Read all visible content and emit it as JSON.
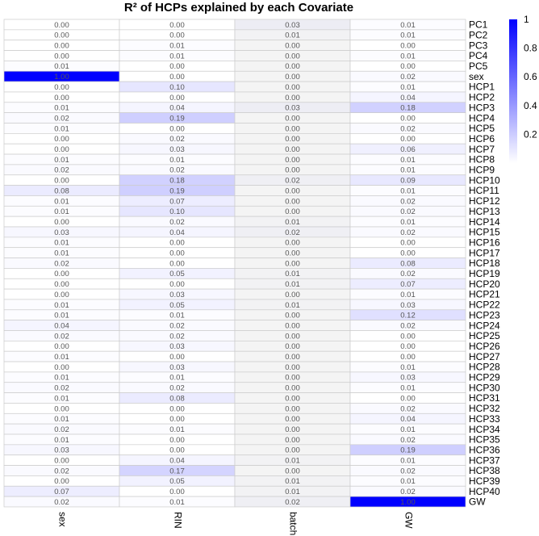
{
  "chart_data": {
    "type": "heatmap",
    "title": "R² of HCPs explained by each Covariate",
    "columns": [
      "sex",
      "RIN",
      "batch",
      "GW"
    ],
    "rows": [
      "PC1",
      "PC2",
      "PC3",
      "PC4",
      "PC5",
      "sex",
      "HCP1",
      "HCP2",
      "HCP3",
      "HCP4",
      "HCP5",
      "HCP6",
      "HCP7",
      "HCP8",
      "HCP9",
      "HCP10",
      "HCP11",
      "HCP12",
      "HCP13",
      "HCP14",
      "HCP15",
      "HCP16",
      "HCP17",
      "HCP18",
      "HCP19",
      "HCP20",
      "HCP21",
      "HCP22",
      "HCP23",
      "HCP24",
      "HCP25",
      "HCP26",
      "HCP27",
      "HCP28",
      "HCP29",
      "HCP30",
      "HCP31",
      "HCP32",
      "HCP33",
      "HCP34",
      "HCP35",
      "HCP36",
      "HCP37",
      "HCP38",
      "HCP39",
      "HCP40",
      "GW"
    ],
    "values": [
      [
        "0.00",
        "0.00",
        "0.03",
        "0.01"
      ],
      [
        "0.00",
        "0.00",
        "0.01",
        "0.01"
      ],
      [
        "0.00",
        "0.01",
        "0.00",
        "0.00"
      ],
      [
        "0.00",
        "0.01",
        "0.00",
        "0.01"
      ],
      [
        "0.01",
        "0.00",
        "0.00",
        "0.00"
      ],
      [
        "1.00",
        "0.00",
        "0.00",
        "0.02"
      ],
      [
        "0.00",
        "0.10",
        "0.00",
        "0.01"
      ],
      [
        "0.00",
        "0.00",
        "0.00",
        "0.04"
      ],
      [
        "0.01",
        "0.04",
        "0.03",
        "0.18"
      ],
      [
        "0.02",
        "0.19",
        "0.00",
        "0.00"
      ],
      [
        "0.01",
        "0.00",
        "0.00",
        "0.02"
      ],
      [
        "0.00",
        "0.02",
        "0.00",
        "0.00"
      ],
      [
        "0.00",
        "0.03",
        "0.00",
        "0.06"
      ],
      [
        "0.01",
        "0.01",
        "0.00",
        "0.01"
      ],
      [
        "0.02",
        "0.02",
        "0.00",
        "0.01"
      ],
      [
        "0.00",
        "0.18",
        "0.02",
        "0.09"
      ],
      [
        "0.08",
        "0.19",
        "0.00",
        "0.01"
      ],
      [
        "0.01",
        "0.07",
        "0.00",
        "0.02"
      ],
      [
        "0.01",
        "0.10",
        "0.00",
        "0.02"
      ],
      [
        "0.00",
        "0.02",
        "0.01",
        "0.01"
      ],
      [
        "0.03",
        "0.04",
        "0.02",
        "0.02"
      ],
      [
        "0.01",
        "0.00",
        "0.00",
        "0.00"
      ],
      [
        "0.01",
        "0.00",
        "0.00",
        "0.00"
      ],
      [
        "0.02",
        "0.00",
        "0.00",
        "0.08"
      ],
      [
        "0.00",
        "0.05",
        "0.01",
        "0.02"
      ],
      [
        "0.00",
        "0.00",
        "0.01",
        "0.07"
      ],
      [
        "0.00",
        "0.03",
        "0.00",
        "0.01"
      ],
      [
        "0.01",
        "0.05",
        "0.01",
        "0.03"
      ],
      [
        "0.01",
        "0.01",
        "0.00",
        "0.12"
      ],
      [
        "0.04",
        "0.02",
        "0.00",
        "0.02"
      ],
      [
        "0.02",
        "0.02",
        "0.00",
        "0.00"
      ],
      [
        "0.00",
        "0.03",
        "0.00",
        "0.00"
      ],
      [
        "0.01",
        "0.00",
        "0.00",
        "0.00"
      ],
      [
        "0.00",
        "0.03",
        "0.00",
        "0.01"
      ],
      [
        "0.01",
        "0.01",
        "0.00",
        "0.03"
      ],
      [
        "0.02",
        "0.02",
        "0.00",
        "0.01"
      ],
      [
        "0.01",
        "0.08",
        "0.00",
        "0.00"
      ],
      [
        "0.00",
        "0.00",
        "0.00",
        "0.02"
      ],
      [
        "0.01",
        "0.00",
        "0.00",
        "0.04"
      ],
      [
        "0.02",
        "0.01",
        "0.00",
        "0.01"
      ],
      [
        "0.01",
        "0.00",
        "0.00",
        "0.02"
      ],
      [
        "0.03",
        "0.00",
        "0.00",
        "0.19"
      ],
      [
        "0.00",
        "0.04",
        "0.01",
        "0.01"
      ],
      [
        "0.02",
        "0.17",
        "0.00",
        "0.02"
      ],
      [
        "0.00",
        "0.05",
        "0.01",
        "0.01"
      ],
      [
        "0.07",
        "0.00",
        "0.01",
        "0.02"
      ],
      [
        "0.02",
        "0.01",
        "0.02",
        "1.00"
      ]
    ],
    "color_scale": {
      "min": 0,
      "max": 1,
      "low_color": "#ffffff",
      "high_color": "#0000ff"
    },
    "legend": {
      "ticks": [
        "1",
        "0.8",
        "0.6",
        "0.4",
        "0.2"
      ],
      "tick_values": [
        1,
        0.8,
        0.6,
        0.4,
        0.2
      ],
      "position": "right"
    },
    "grid": true,
    "grid_color": "#cccccc",
    "batch_column_tint": "#f4f4f4"
  }
}
